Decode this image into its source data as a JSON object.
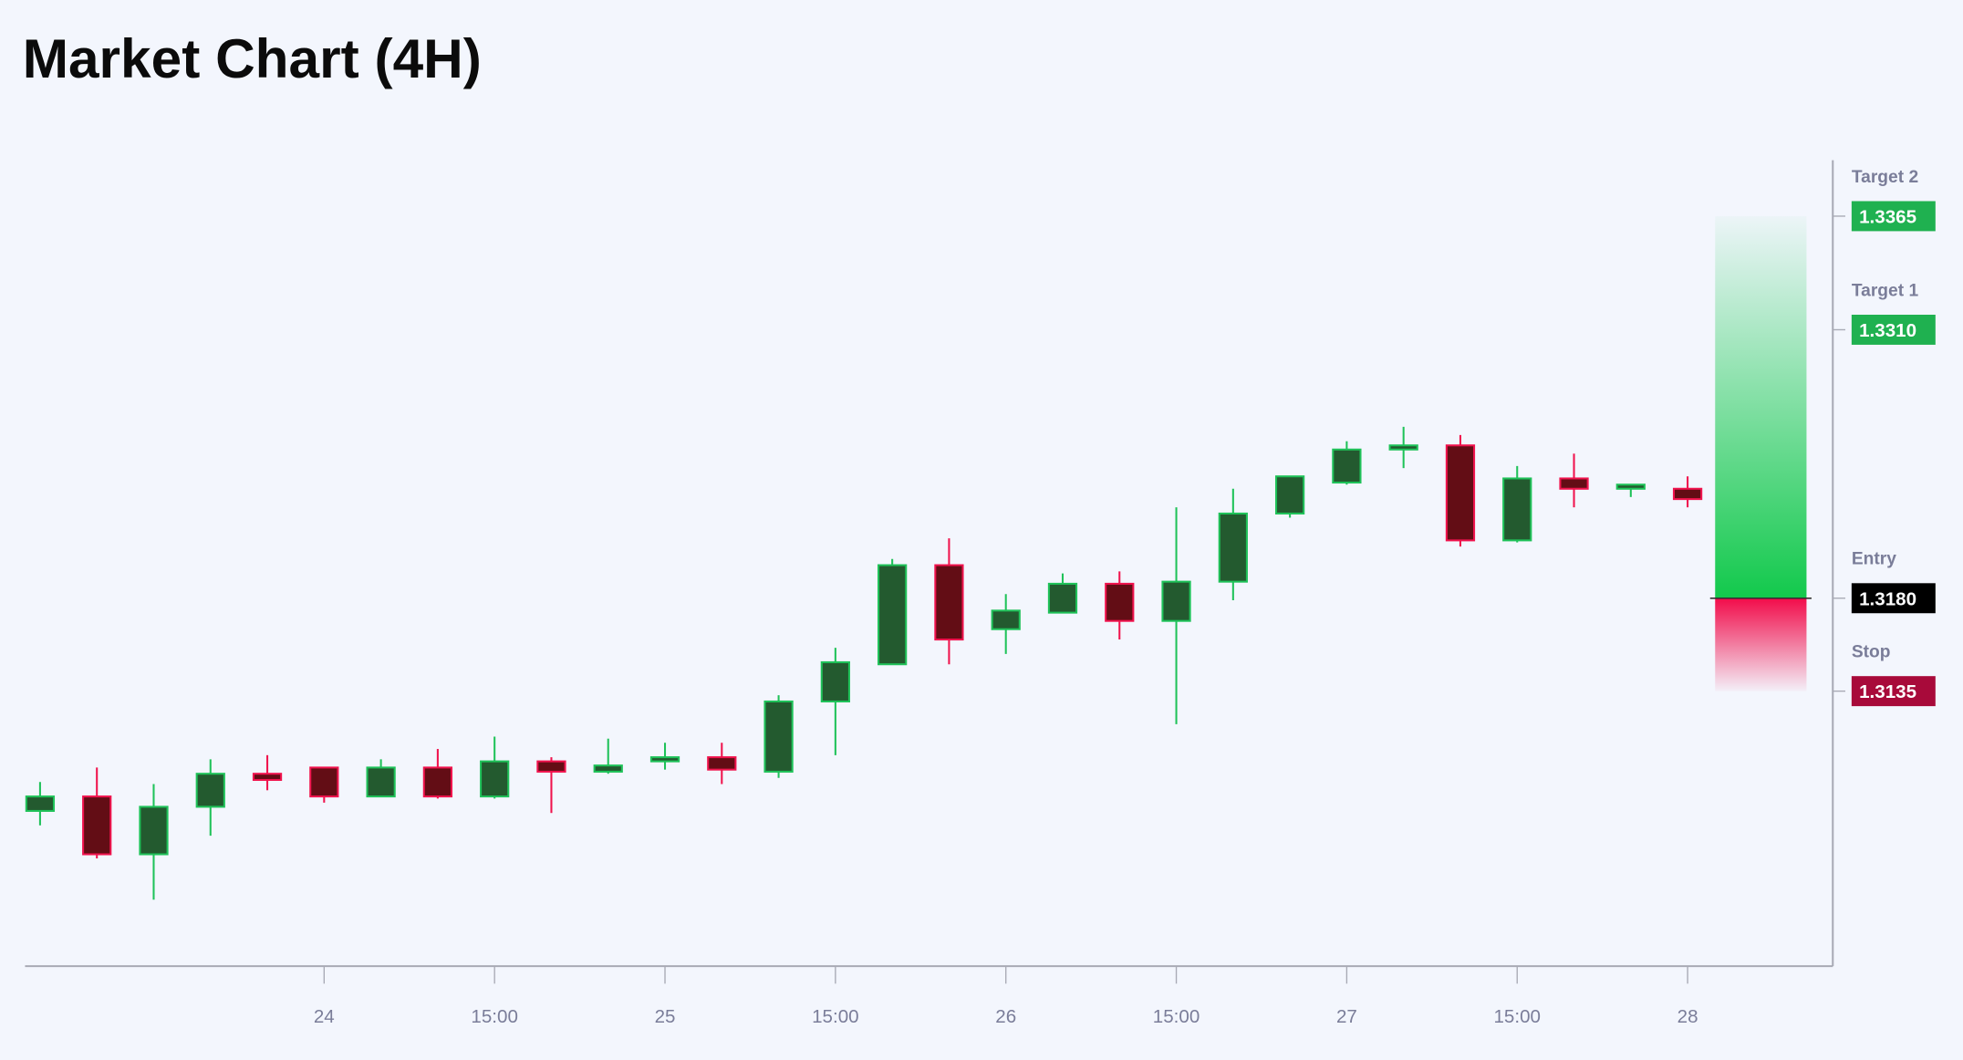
{
  "chart_data": {
    "type": "candlestick",
    "title": "Market Chart (4H)",
    "x_tick_labels": [
      "24",
      "15:00",
      "25",
      "15:00",
      "26",
      "15:00",
      "27",
      "15:00",
      "28"
    ],
    "x_tick_candle_index": [
      5,
      8,
      11,
      14,
      17,
      20,
      23,
      26,
      29
    ],
    "grid": false,
    "candles": [
      {
        "o": 1.3077,
        "h": 1.3091,
        "l": 1.307,
        "c": 1.3084
      },
      {
        "o": 1.3084,
        "h": 1.3098,
        "l": 1.3054,
        "c": 1.3056
      },
      {
        "o": 1.3056,
        "h": 1.309,
        "l": 1.3034,
        "c": 1.3079
      },
      {
        "o": 1.3079,
        "h": 1.3102,
        "l": 1.3065,
        "c": 1.3095
      },
      {
        "o": 1.3095,
        "h": 1.3104,
        "l": 1.3087,
        "c": 1.3092
      },
      {
        "o": 1.3098,
        "h": 1.3098,
        "l": 1.3081,
        "c": 1.3084
      },
      {
        "o": 1.3084,
        "h": 1.3102,
        "l": 1.3084,
        "c": 1.3098
      },
      {
        "o": 1.3098,
        "h": 1.3107,
        "l": 1.3083,
        "c": 1.3084
      },
      {
        "o": 1.3084,
        "h": 1.3113,
        "l": 1.3083,
        "c": 1.3101
      },
      {
        "o": 1.3101,
        "h": 1.3103,
        "l": 1.3076,
        "c": 1.3096
      },
      {
        "o": 1.3096,
        "h": 1.3112,
        "l": 1.3095,
        "c": 1.3099
      },
      {
        "o": 1.3101,
        "h": 1.311,
        "l": 1.3097,
        "c": 1.3103
      },
      {
        "o": 1.3103,
        "h": 1.311,
        "l": 1.309,
        "c": 1.3097
      },
      {
        "o": 1.3096,
        "h": 1.3133,
        "l": 1.3093,
        "c": 1.313
      },
      {
        "o": 1.313,
        "h": 1.3156,
        "l": 1.3104,
        "c": 1.3149
      },
      {
        "o": 1.3148,
        "h": 1.3199,
        "l": 1.3148,
        "c": 1.3196
      },
      {
        "o": 1.3196,
        "h": 1.3209,
        "l": 1.3148,
        "c": 1.316
      },
      {
        "o": 1.3165,
        "h": 1.3182,
        "l": 1.3153,
        "c": 1.3174
      },
      {
        "o": 1.3173,
        "h": 1.3192,
        "l": 1.3173,
        "c": 1.3187
      },
      {
        "o": 1.3187,
        "h": 1.3193,
        "l": 1.316,
        "c": 1.3169
      },
      {
        "o": 1.3169,
        "h": 1.3224,
        "l": 1.3119,
        "c": 1.3188
      },
      {
        "o": 1.3188,
        "h": 1.3233,
        "l": 1.3179,
        "c": 1.3221
      },
      {
        "o": 1.3221,
        "h": 1.3239,
        "l": 1.3219,
        "c": 1.3239
      },
      {
        "o": 1.3236,
        "h": 1.3256,
        "l": 1.3235,
        "c": 1.3252
      },
      {
        "o": 1.3252,
        "h": 1.3263,
        "l": 1.3243,
        "c": 1.3254
      },
      {
        "o": 1.3254,
        "h": 1.3259,
        "l": 1.3205,
        "c": 1.3208
      },
      {
        "o": 1.3208,
        "h": 1.3244,
        "l": 1.3207,
        "c": 1.3238
      },
      {
        "o": 1.3238,
        "h": 1.325,
        "l": 1.3224,
        "c": 1.3233
      },
      {
        "o": 1.3233,
        "h": 1.3235,
        "l": 1.3229,
        "c": 1.3235
      },
      {
        "o": 1.3233,
        "h": 1.3239,
        "l": 1.3224,
        "c": 1.3228
      }
    ],
    "levels": [
      {
        "name": "Target 2",
        "value": "1.3365",
        "price": 1.3365,
        "color": "#1fb150"
      },
      {
        "name": "Target 1",
        "value": "1.3310",
        "price": 1.331,
        "color": "#1fb150"
      },
      {
        "name": "Entry",
        "value": "1.3180",
        "price": 1.318,
        "color": "#000000"
      },
      {
        "name": "Stop",
        "value": "1.3135",
        "price": 1.3135,
        "color": "#a80a3a"
      }
    ],
    "colors": {
      "up_body": "#235a2f",
      "up_border": "#1fc259",
      "down_body": "#630d15",
      "down_border": "#f0134d",
      "zone_profit": "#12c94c",
      "zone_loss": "#f20c4a",
      "background": "#f3f6fd"
    }
  }
}
